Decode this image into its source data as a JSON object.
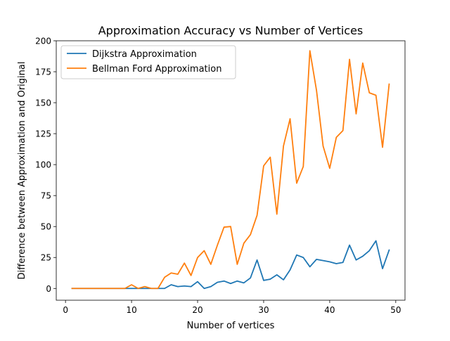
{
  "chart_data": {
    "type": "line",
    "title": "Approximation Accuracy vs Number of Vertices",
    "xlabel": "Number of vertices",
    "ylabel": "Difference between Approximation and Original",
    "xlim": [
      -1.4,
      51.4
    ],
    "ylim": [
      -9.5,
      200
    ],
    "xticks": [
      0,
      10,
      20,
      30,
      40,
      50
    ],
    "yticks": [
      0,
      25,
      50,
      75,
      100,
      125,
      150,
      175,
      200
    ],
    "grid": false,
    "legend_position": "top-left",
    "x": [
      1,
      2,
      3,
      4,
      5,
      6,
      7,
      8,
      9,
      10,
      11,
      12,
      13,
      14,
      15,
      16,
      17,
      18,
      19,
      20,
      21,
      22,
      23,
      24,
      25,
      26,
      27,
      28,
      29,
      30,
      31,
      32,
      33,
      34,
      35,
      36,
      37,
      38,
      39,
      40,
      41,
      42,
      43,
      44,
      45,
      46,
      47,
      48,
      49
    ],
    "series": [
      {
        "name": "Dijkstra Approximation",
        "color": "#1f77b4",
        "values": [
          0,
          0,
          0,
          0,
          0,
          0,
          0,
          0,
          0,
          0,
          0,
          0,
          0,
          0,
          0,
          3,
          1.5,
          2,
          1.5,
          5.5,
          0,
          1.5,
          5,
          6,
          4,
          6,
          4.5,
          8.5,
          23,
          6.5,
          7.5,
          11,
          7,
          15,
          27,
          25,
          17.5,
          23.5,
          22.5,
          21.5,
          20,
          21,
          35,
          23,
          26,
          30.5,
          38.5,
          16,
          31
        ]
      },
      {
        "name": "Bellman Ford Approximation",
        "color": "#ff7f0e",
        "values": [
          0,
          0,
          0,
          0,
          0,
          0,
          0,
          0,
          0,
          3,
          0,
          1.5,
          0,
          0,
          9,
          12.5,
          11.5,
          20.5,
          10.5,
          25,
          30.5,
          19.5,
          35,
          49.5,
          50,
          19.5,
          36.5,
          43.5,
          59,
          99,
          106,
          60,
          115,
          137,
          85,
          98.5,
          192,
          160,
          115,
          97,
          122,
          127.5,
          185,
          141,
          182,
          158,
          156,
          114,
          165
        ]
      }
    ]
  }
}
